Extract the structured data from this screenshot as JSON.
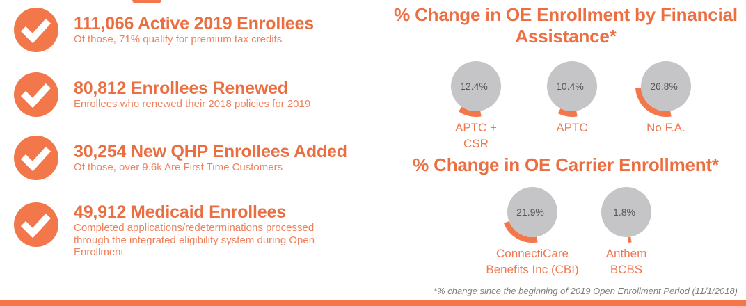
{
  "colors": {
    "orange_shape": "#F2774B",
    "orange_heading": "#EB6E41",
    "orange_detail": "#F0815C",
    "gray_circle": "#C5C4C6",
    "value_text": "#58585A",
    "footnote_text": "#7F7F7F"
  },
  "stats": [
    {
      "headline": "111,066 Active 2019 Enrollees",
      "detail": "Of those, 71% qualify for premium tax credits"
    },
    {
      "headline": "80,812 Enrollees Renewed",
      "detail": "Enrollees who renewed their 2018 policies for 2019"
    },
    {
      "headline": "30,254 New QHP Enrollees Added",
      "detail": "Of those, over 9.6k Are First Time Customers"
    },
    {
      "headline": "49,912 Medicaid Enrollees",
      "detail": "Completed applications/redeterminations processed\nthrough the integrated eligibility system during Open\nEnrollment"
    }
  ],
  "chart_data": [
    {
      "type": "gauge",
      "title": "% Change in OE Enrollment by Financial Assistance*",
      "categories": [
        "APTC + CSR",
        "APTC",
        "No F.A."
      ],
      "values": [
        12.4,
        10.4,
        26.8
      ],
      "value_labels": [
        "12.4%",
        "10.4%",
        "26.8%"
      ],
      "display_labels": [
        "APTC +\nCSR",
        "APTC",
        "No F.A."
      ],
      "unit": "%"
    },
    {
      "type": "gauge",
      "title": "% Change in OE Carrier Enrollment*",
      "categories": [
        "ConnectiCare Benefits Inc (CBI)",
        "Anthem BCBS"
      ],
      "values": [
        21.9,
        1.8
      ],
      "value_labels": [
        "21.9%",
        "1.8%"
      ],
      "display_labels": [
        "ConnectiCare\nBenefits Inc (CBI)",
        "Anthem\nBCBS"
      ],
      "unit": "%"
    }
  ],
  "footnote": "*% change since the beginning of 2019 Open Enrollment Period (11/1/2018)"
}
